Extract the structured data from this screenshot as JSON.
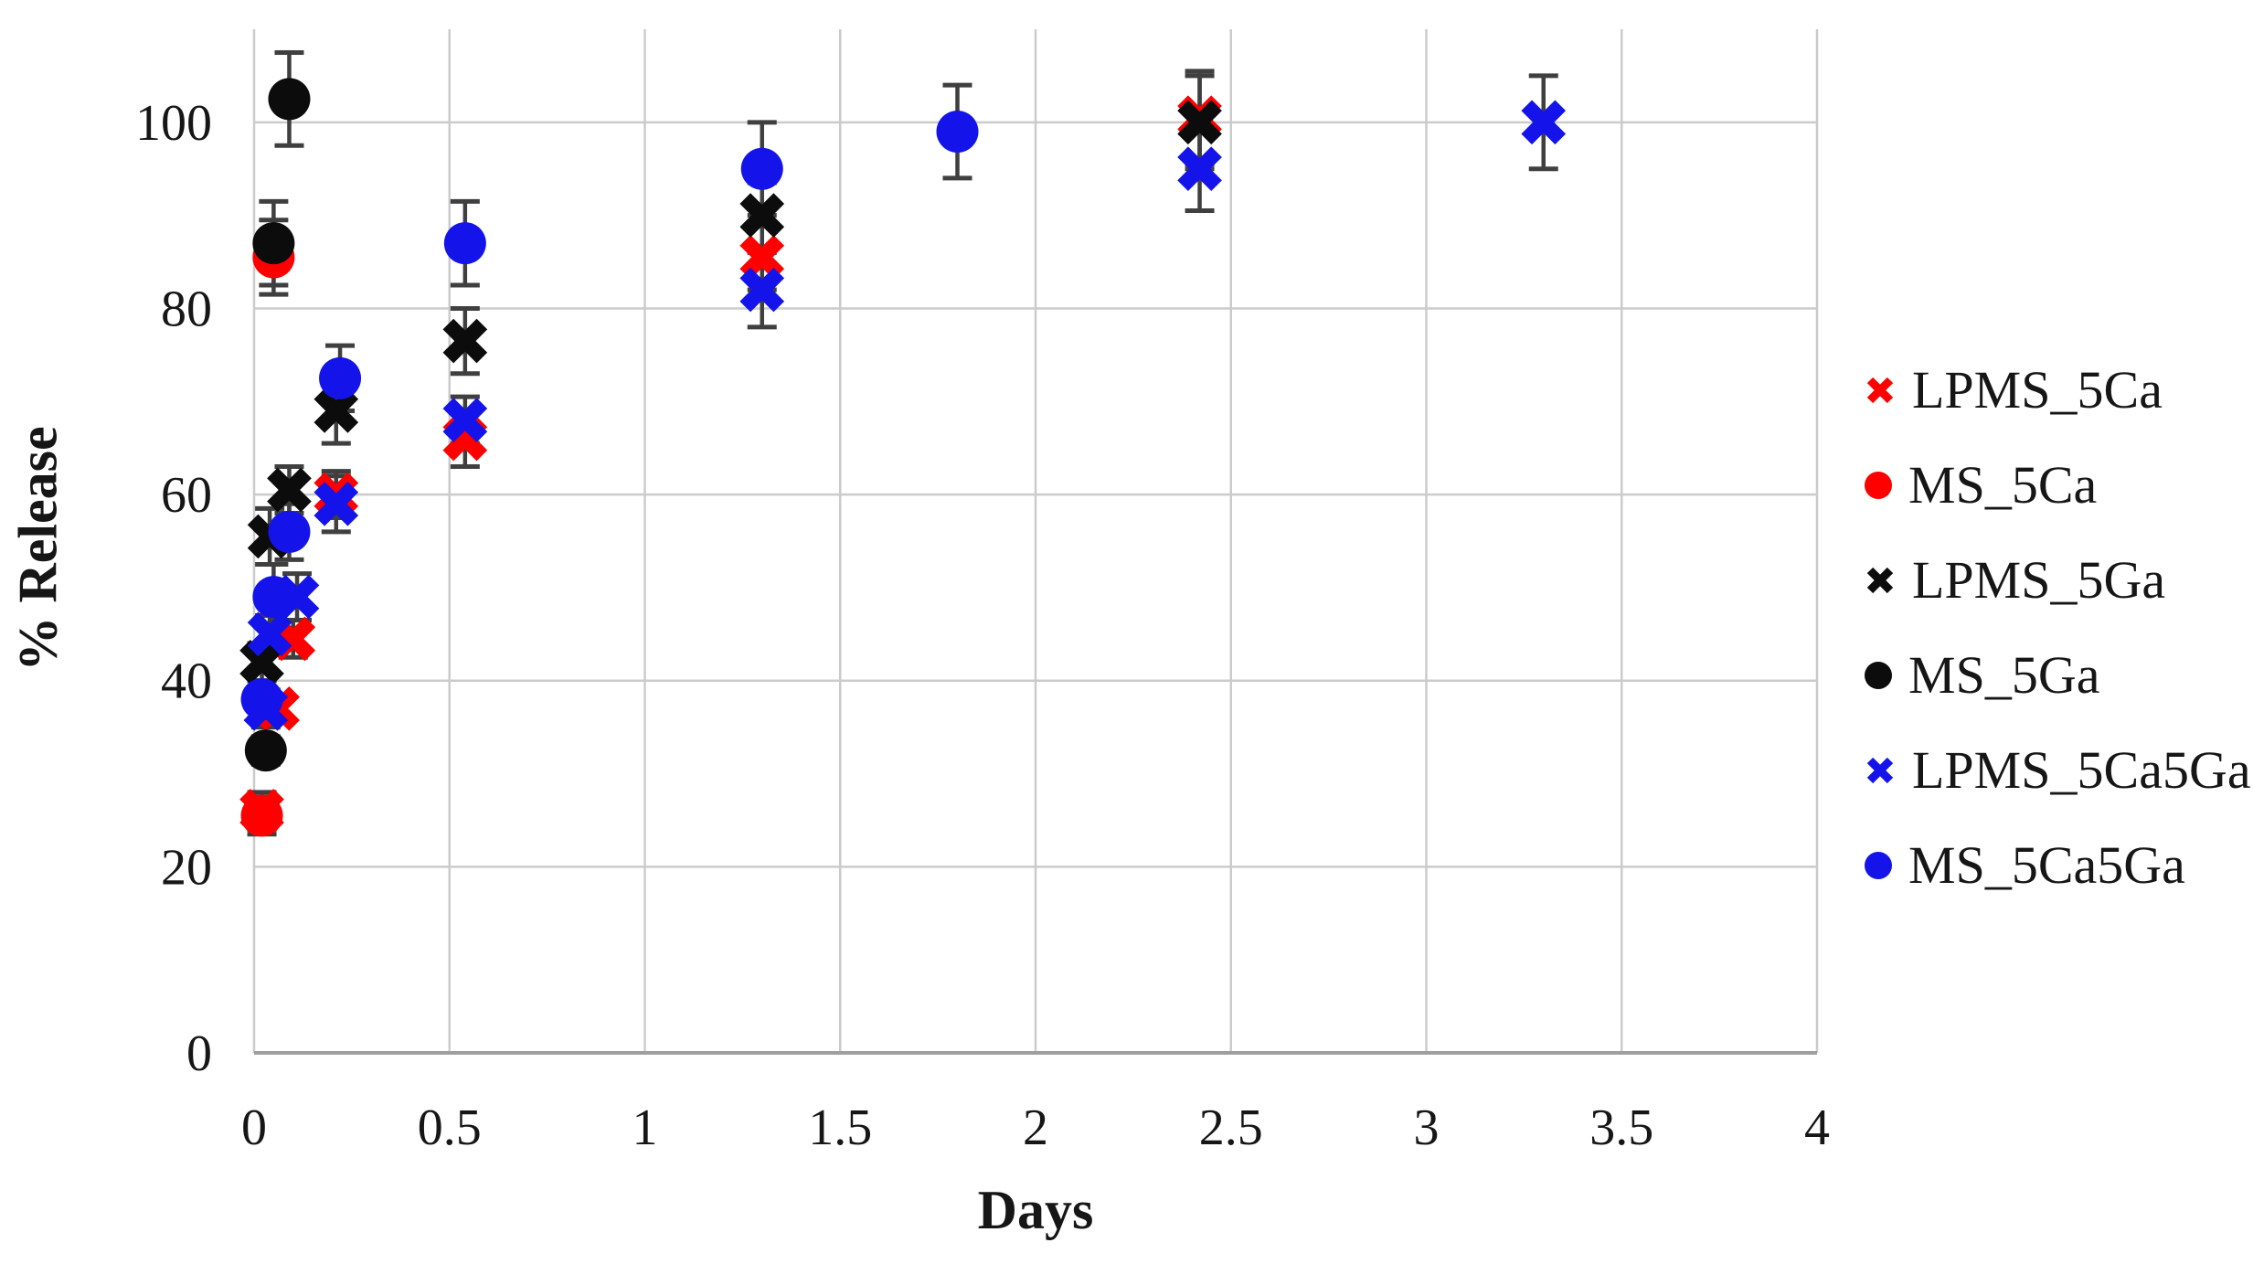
{
  "figure": {
    "background": "#ffffff"
  },
  "chart_data": {
    "type": "scatter",
    "title": "",
    "xlabel": "Days",
    "ylabel": "% Release",
    "xlim": [
      0,
      4
    ],
    "ylim": [
      0,
      110
    ],
    "x_ticks": [
      "0",
      "0.5",
      "1",
      "1.5",
      "2",
      "2.5",
      "3",
      "3.5",
      "4"
    ],
    "y_ticks": [
      "0",
      "20",
      "40",
      "60",
      "80",
      "100"
    ],
    "grid": true,
    "legend_position": "right",
    "error_bars": true,
    "colors": {
      "grid": "#cbcbcb",
      "axis": "#9f9f9f",
      "error_bar": "#3f3f3f",
      "text": "#161616",
      "red": "#fe0000",
      "black": "#0c0c0c",
      "blue": "#1414ea"
    },
    "series": [
      {
        "name": "LPMS_5Ca",
        "marker": "x",
        "color": "#fe0000",
        "points": [
          {
            "x": 0.02,
            "y": 26.0,
            "e": 2.0
          },
          {
            "x": 0.06,
            "y": 37.0,
            "e": 1.5
          },
          {
            "x": 0.1,
            "y": 44.5,
            "e": 2.0
          },
          {
            "x": 0.21,
            "y": 60.0,
            "e": 2.5
          },
          {
            "x": 0.54,
            "y": 66.0,
            "e": 3.0
          },
          {
            "x": 1.3,
            "y": 85.5,
            "e": 3.5
          },
          {
            "x": 2.42,
            "y": 100.5,
            "e": 5.0
          }
        ]
      },
      {
        "name": "MS_5Ca",
        "marker": "circle",
        "color": "#fe0000",
        "points": [
          {
            "x": 0.02,
            "y": 25.5,
            "e": 2.0
          },
          {
            "x": 0.05,
            "y": 85.5,
            "e": 4.0
          }
        ]
      },
      {
        "name": "LPMS_5Ga",
        "marker": "x",
        "color": "#0c0c0c",
        "points": [
          {
            "x": 0.02,
            "y": 42.0,
            "e": 2.0
          },
          {
            "x": 0.04,
            "y": 55.5,
            "e": 3.0
          },
          {
            "x": 0.09,
            "y": 60.5,
            "e": 2.5
          },
          {
            "x": 0.21,
            "y": 69.0,
            "e": 3.5
          },
          {
            "x": 0.54,
            "y": 76.5,
            "e": 3.5
          },
          {
            "x": 1.3,
            "y": 90.0,
            "e": 3.5
          },
          {
            "x": 2.42,
            "y": 100.0,
            "e": 5.0
          }
        ]
      },
      {
        "name": "MS_5Ga",
        "marker": "circle",
        "color": "#0c0c0c",
        "points": [
          {
            "x": 0.03,
            "y": 32.5,
            "e": 1.5
          },
          {
            "x": 0.05,
            "y": 87.0,
            "e": 4.5
          },
          {
            "x": 0.09,
            "y": 102.5,
            "e": 5.0
          }
        ]
      },
      {
        "name": "LPMS_5Ca5Ga",
        "marker": "x",
        "color": "#1414ea",
        "points": [
          {
            "x": 0.03,
            "y": 37.0,
            "e": 2.0
          },
          {
            "x": 0.04,
            "y": 45.0,
            "e": 2.0
          },
          {
            "x": 0.11,
            "y": 49.0,
            "e": 2.5
          },
          {
            "x": 0.21,
            "y": 59.0,
            "e": 3.0
          },
          {
            "x": 0.54,
            "y": 68.0,
            "e": 2.5
          },
          {
            "x": 1.3,
            "y": 82.0,
            "e": 4.0
          },
          {
            "x": 2.42,
            "y": 95.0,
            "e": 4.5
          },
          {
            "x": 3.3,
            "y": 100.0,
            "e": 5.0
          }
        ]
      },
      {
        "name": "MS_5Ca5Ga",
        "marker": "circle",
        "color": "#1414ea",
        "points": [
          {
            "x": 0.02,
            "y": 38.0,
            "e": 2.0
          },
          {
            "x": 0.05,
            "y": 49.0,
            "e": 3.5
          },
          {
            "x": 0.09,
            "y": 56.0,
            "e": 3.0
          },
          {
            "x": 0.22,
            "y": 72.5,
            "e": 3.5
          },
          {
            "x": 0.54,
            "y": 87.0,
            "e": 4.5
          },
          {
            "x": 1.3,
            "y": 95.0,
            "e": 5.0
          },
          {
            "x": 1.8,
            "y": 99.0,
            "e": 5.0
          }
        ]
      }
    ]
  }
}
